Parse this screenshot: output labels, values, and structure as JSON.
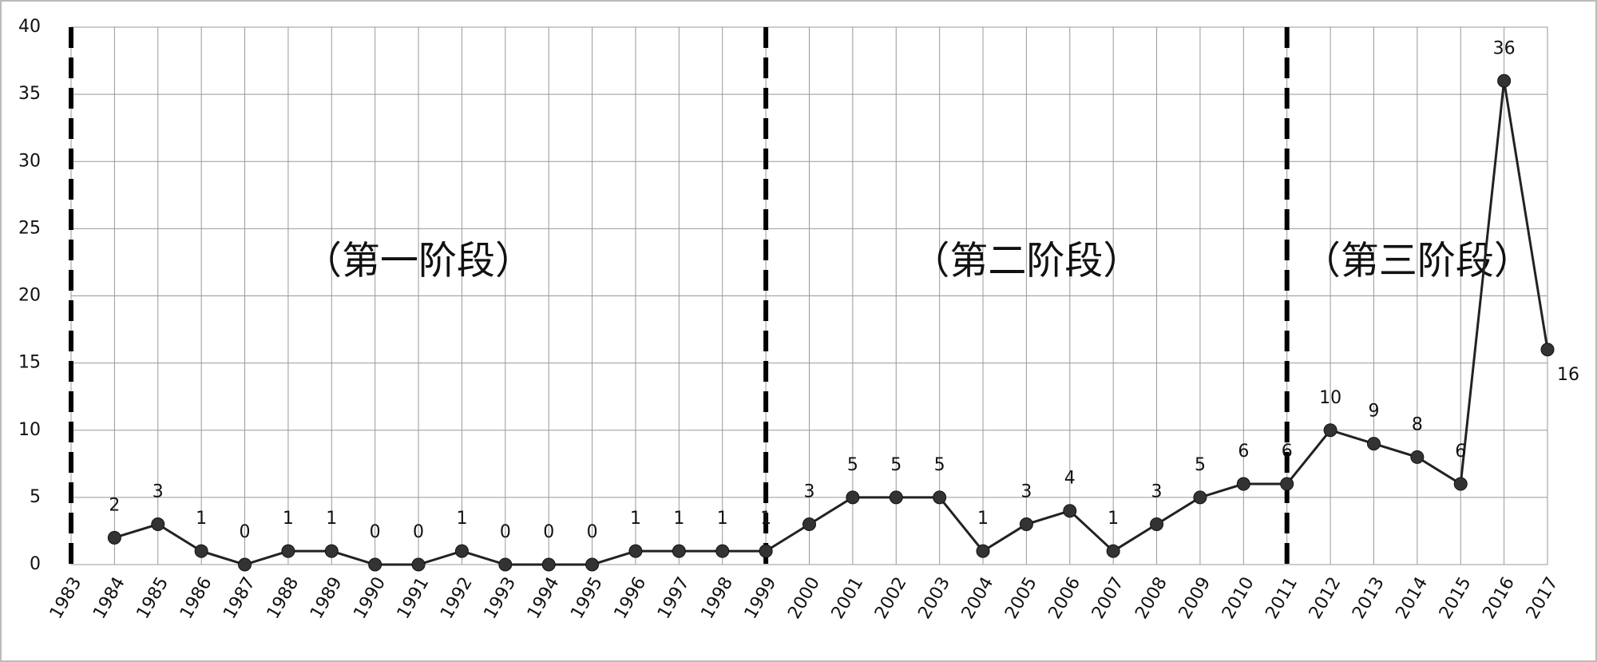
{
  "chart_data": {
    "type": "line",
    "x": [
      1983,
      1984,
      1985,
      1986,
      1987,
      1988,
      1989,
      1990,
      1991,
      1992,
      1993,
      1994,
      1995,
      1996,
      1997,
      1998,
      1999,
      2000,
      2001,
      2002,
      2003,
      2004,
      2005,
      2006,
      2007,
      2008,
      2009,
      2010,
      2011,
      2012,
      2013,
      2014,
      2015,
      2016,
      2017
    ],
    "values": [
      null,
      2,
      3,
      1,
      0,
      1,
      1,
      0,
      0,
      1,
      0,
      0,
      0,
      1,
      1,
      1,
      1,
      3,
      5,
      5,
      5,
      1,
      3,
      4,
      1,
      3,
      5,
      6,
      6,
      10,
      9,
      8,
      6,
      36,
      16
    ],
    "color": "#222222",
    "xlim": [
      1983,
      2017
    ],
    "xticks": [
      1983,
      1984,
      1985,
      1986,
      1987,
      1988,
      1989,
      1990,
      1991,
      1992,
      1993,
      1994,
      1995,
      1996,
      1997,
      1998,
      1999,
      2000,
      2001,
      2002,
      2003,
      2004,
      2005,
      2006,
      2007,
      2008,
      2009,
      2010,
      2011,
      2012,
      2013,
      2014,
      2015,
      2016,
      2017
    ],
    "ylim": [
      0,
      40
    ],
    "yticks": [
      0,
      5,
      10,
      15,
      20,
      25,
      30,
      35,
      40
    ],
    "grid": true,
    "dividers": [
      1983,
      1999,
      2011
    ],
    "phases": [
      "（第一阶段）",
      "（第二阶段）",
      "（第三阶段）"
    ]
  }
}
